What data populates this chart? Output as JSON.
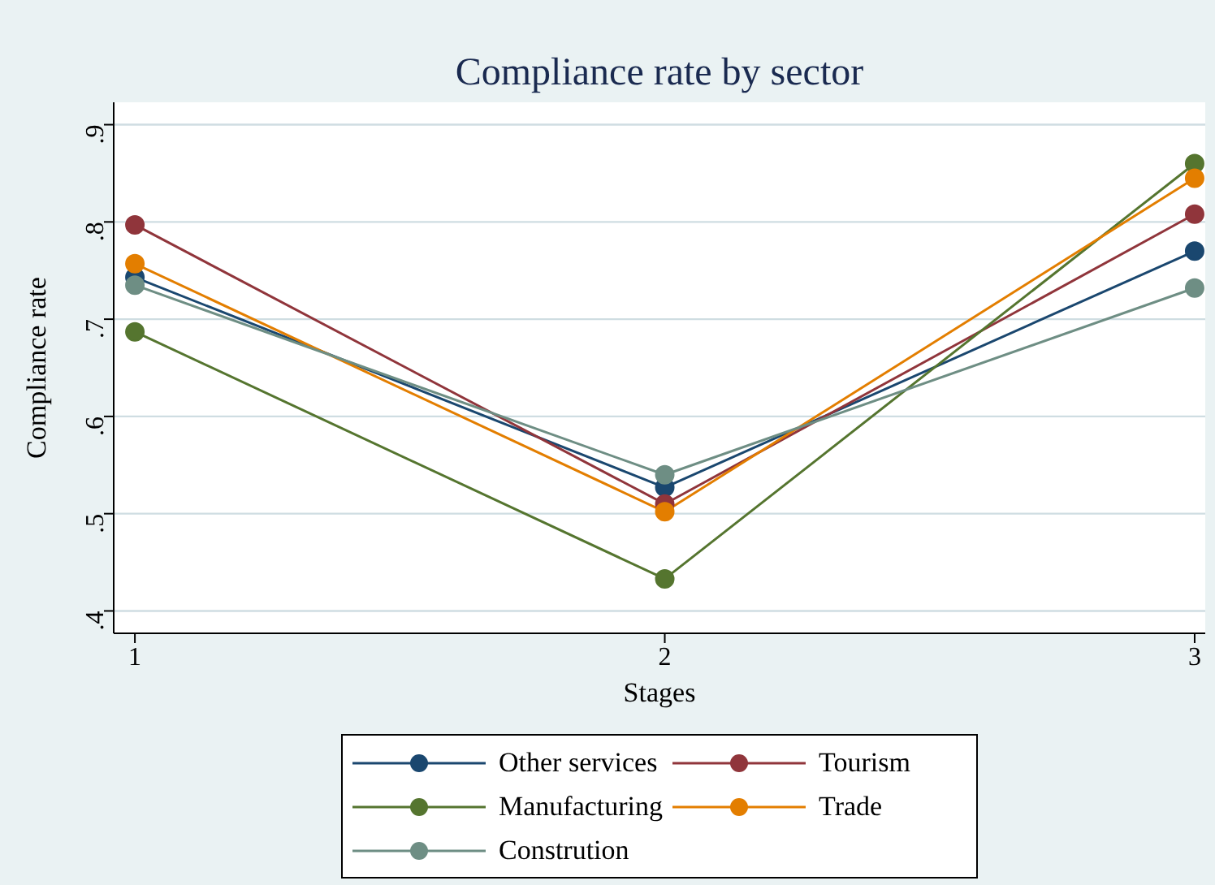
{
  "chart_data": {
    "type": "line",
    "title": "Compliance rate by sector",
    "xlabel": "Stages",
    "ylabel": "Compliance rate",
    "x": [
      1,
      2,
      3
    ],
    "xlim": [
      0.96,
      3.02
    ],
    "xticks": [
      1,
      2,
      3
    ],
    "ylim": [
      0.377,
      0.923
    ],
    "yticks": [
      {
        "value": 0.4,
        "label": ".4"
      },
      {
        "value": 0.5,
        "label": ".5"
      },
      {
        "value": 0.6,
        "label": ".6"
      },
      {
        "value": 0.7,
        "label": ".7"
      },
      {
        "value": 0.8,
        "label": ".8"
      },
      {
        "value": 0.9,
        "label": ".9"
      }
    ],
    "grid": "y",
    "legend": "bottom",
    "marker": "circle",
    "line_style": "solid",
    "series": [
      {
        "name": "Other services",
        "color": "#1a476f",
        "values": [
          0.743,
          0.527,
          0.77
        ]
      },
      {
        "name": "Tourism",
        "color": "#90353b",
        "values": [
          0.797,
          0.51,
          0.808
        ]
      },
      {
        "name": "Manufacturing",
        "color": "#55752f",
        "values": [
          0.687,
          0.433,
          0.86
        ]
      },
      {
        "name": "Trade",
        "color": "#e37e00",
        "values": [
          0.757,
          0.502,
          0.845
        ]
      },
      {
        "name": "Constrution",
        "color": "#6e8e84",
        "values": [
          0.735,
          0.54,
          0.732
        ]
      }
    ]
  }
}
